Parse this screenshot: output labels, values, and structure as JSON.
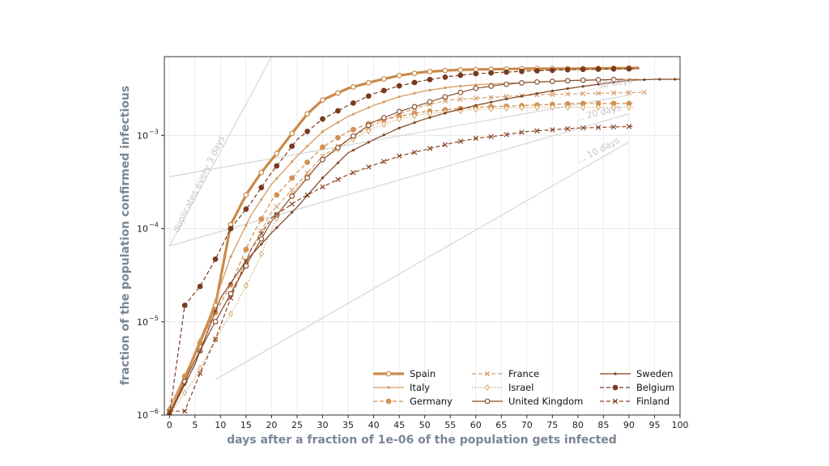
{
  "chart_data": {
    "type": "line",
    "xlabel": "days after a fraction of 1e-06 of the population gets infected",
    "ylabel": "fraction of the population confirmed infectious",
    "xlim": [
      -1,
      100
    ],
    "ylim": [
      1e-06,
      0.007
    ],
    "yscale": "log",
    "grid": true,
    "legend_position": "bottom-right",
    "xticks": [
      0,
      5,
      10,
      15,
      20,
      25,
      30,
      35,
      40,
      45,
      50,
      55,
      60,
      65,
      70,
      75,
      80,
      85,
      90,
      95,
      100
    ],
    "yticks": [
      {
        "value": 1e-06,
        "base": "10",
        "exp": "−6"
      },
      {
        "value": 1e-05,
        "base": "10",
        "exp": "−5"
      },
      {
        "value": 0.0001,
        "base": "10",
        "exp": "−4"
      },
      {
        "value": 0.001,
        "base": "10",
        "exp": "−3"
      }
    ],
    "guides": [
      {
        "label": "duplicates every 3 days",
        "from": [
          0,
          6.5e-05
        ],
        "to": [
          20,
          0.007
        ]
      },
      {
        "label": "... 10 days",
        "from": [
          9,
          2.4e-06
        ],
        "to": [
          90,
          0.00085
        ]
      },
      {
        "label": "... 20 days",
        "from": [
          0,
          6.5e-05
        ],
        "to": [
          90,
          0.0017
        ]
      },
      {
        "label": "... 30 days",
        "from": [
          0,
          0.00036
        ],
        "to": [
          90,
          0.0027
        ]
      }
    ],
    "guide_labels": {
      "d3": "duplicates every 3 days",
      "d10": "... 10 days",
      "d20": "... 20 days",
      "d30": "... 30 days"
    },
    "series": [
      {
        "name": "Spain",
        "color": "#c98a49",
        "style": "solid",
        "marker": "open-circle",
        "width": 3.2,
        "days": 92,
        "points": [
          [
            0,
            1e-06
          ],
          [
            3,
            2.5e-06
          ],
          [
            6,
            6e-06
          ],
          [
            9,
            1.5e-05
          ],
          [
            12,
            0.00011
          ],
          [
            15,
            0.00023
          ],
          [
            18,
            0.0004
          ],
          [
            21,
            0.00064
          ],
          [
            24,
            0.00105
          ],
          [
            27,
            0.0017
          ],
          [
            30,
            0.0024
          ],
          [
            35,
            0.0032
          ],
          [
            40,
            0.0038
          ],
          [
            45,
            0.0044
          ],
          [
            50,
            0.0048
          ],
          [
            55,
            0.005
          ],
          [
            60,
            0.0051
          ],
          [
            70,
            0.0052
          ],
          [
            80,
            0.0052
          ],
          [
            92,
            0.0053
          ]
        ]
      },
      {
        "name": "Italy",
        "color": "#d69a5e",
        "style": "solid",
        "marker": "dot",
        "width": 1.3,
        "days": 92,
        "points": [
          [
            0,
            1.2e-06
          ],
          [
            4,
            3.5e-06
          ],
          [
            8,
            1.2e-05
          ],
          [
            12,
            5e-05
          ],
          [
            16,
            0.00014
          ],
          [
            20,
            0.0003
          ],
          [
            25,
            0.0006
          ],
          [
            30,
            0.0011
          ],
          [
            35,
            0.0016
          ],
          [
            40,
            0.0021
          ],
          [
            45,
            0.0026
          ],
          [
            50,
            0.003
          ],
          [
            55,
            0.0033
          ],
          [
            60,
            0.0035
          ],
          [
            70,
            0.0037
          ],
          [
            80,
            0.0039
          ],
          [
            92,
            0.004
          ]
        ]
      },
      {
        "name": "Germany",
        "color": "#d39155",
        "style": "dashed",
        "marker": "filled-circle",
        "width": 1.3,
        "days": 91,
        "points": [
          [
            0,
            1.1e-06
          ],
          [
            4,
            3.5e-06
          ],
          [
            8,
            1e-05
          ],
          [
            12,
            2.5e-05
          ],
          [
            16,
            8e-05
          ],
          [
            20,
            0.0002
          ],
          [
            25,
            0.0004
          ],
          [
            30,
            0.00075
          ],
          [
            35,
            0.0011
          ],
          [
            40,
            0.0014
          ],
          [
            45,
            0.0016
          ],
          [
            50,
            0.0018
          ],
          [
            55,
            0.0019
          ],
          [
            60,
            0.002
          ],
          [
            70,
            0.0021
          ],
          [
            80,
            0.0022
          ],
          [
            91,
            0.0022
          ]
        ]
      },
      {
        "name": "France",
        "color": "#d8a070",
        "style": "dashed",
        "marker": "x",
        "width": 1.2,
        "days": 93,
        "points": [
          [
            0,
            1.1e-06
          ],
          [
            4,
            3e-06
          ],
          [
            8,
            8e-06
          ],
          [
            12,
            2e-05
          ],
          [
            16,
            6e-05
          ],
          [
            20,
            0.00015
          ],
          [
            25,
            0.0003
          ],
          [
            30,
            0.0006
          ],
          [
            35,
            0.0009
          ],
          [
            40,
            0.0013
          ],
          [
            45,
            0.0017
          ],
          [
            50,
            0.0021
          ],
          [
            55,
            0.0024
          ],
          [
            60,
            0.0025
          ],
          [
            70,
            0.0027
          ],
          [
            80,
            0.0028
          ],
          [
            93,
            0.0029
          ]
        ]
      },
      {
        "name": "Israel",
        "color": "#d8a76a",
        "style": "dotted",
        "marker": "open-diamond",
        "width": 1.2,
        "days": 91,
        "points": [
          [
            0,
            1e-06
          ],
          [
            5,
            2.5e-06
          ],
          [
            9,
            6.5e-06
          ],
          [
            13,
            1.5e-05
          ],
          [
            17,
            4e-05
          ],
          [
            21,
            0.00013
          ],
          [
            25,
            0.00028
          ],
          [
            30,
            0.00055
          ],
          [
            35,
            0.00085
          ],
          [
            40,
            0.0012
          ],
          [
            45,
            0.0015
          ],
          [
            50,
            0.0017
          ],
          [
            55,
            0.0018
          ],
          [
            60,
            0.0019
          ],
          [
            70,
            0.002
          ],
          [
            80,
            0.002
          ],
          [
            91,
            0.002
          ]
        ]
      },
      {
        "name": "United Kingdom",
        "color": "#8a5030",
        "style": "solid",
        "marker": "open-circle",
        "width": 1.2,
        "days": 89,
        "points": [
          [
            0,
            1e-06
          ],
          [
            4,
            3e-06
          ],
          [
            8,
            8e-06
          ],
          [
            12,
            2e-05
          ],
          [
            16,
            5e-05
          ],
          [
            20,
            0.00012
          ],
          [
            25,
            0.00026
          ],
          [
            30,
            0.00055
          ],
          [
            35,
            0.0009
          ],
          [
            40,
            0.0014
          ],
          [
            45,
            0.0018
          ],
          [
            50,
            0.0022
          ],
          [
            55,
            0.0027
          ],
          [
            60,
            0.0032
          ],
          [
            65,
            0.0035
          ],
          [
            70,
            0.0037
          ],
          [
            80,
            0.0039
          ],
          [
            89,
            0.004
          ]
        ]
      },
      {
        "name": "Sweden",
        "color": "#7e4422",
        "style": "solid",
        "marker": "dot",
        "width": 1.2,
        "days": 100,
        "points": [
          [
            0,
            1e-06
          ],
          [
            5,
            3.5e-06
          ],
          [
            10,
            1.8e-05
          ],
          [
            15,
            4.5e-05
          ],
          [
            20,
            9e-05
          ],
          [
            25,
            0.00017
          ],
          [
            30,
            0.00035
          ],
          [
            35,
            0.00065
          ],
          [
            40,
            0.0009
          ],
          [
            45,
            0.0012
          ],
          [
            50,
            0.0015
          ],
          [
            55,
            0.0018
          ],
          [
            60,
            0.0021
          ],
          [
            65,
            0.0024
          ],
          [
            70,
            0.0027
          ],
          [
            75,
            0.003
          ],
          [
            80,
            0.0033
          ],
          [
            85,
            0.0036
          ],
          [
            90,
            0.0039
          ],
          [
            95,
            0.004
          ],
          [
            100,
            0.004
          ]
        ]
      },
      {
        "name": "Belgium",
        "color": "#7a3a1e",
        "style": "dashed",
        "marker": "filled-circle",
        "width": 1.2,
        "days": 92,
        "points": [
          [
            0,
            1e-06
          ],
          [
            3,
            1.5e-05
          ],
          [
            6,
            2.4e-05
          ],
          [
            9,
            4.7e-05
          ],
          [
            12,
            0.0001
          ],
          [
            16,
            0.00019
          ],
          [
            20,
            0.0004
          ],
          [
            25,
            0.0009
          ],
          [
            30,
            0.0015
          ],
          [
            35,
            0.0021
          ],
          [
            40,
            0.0028
          ],
          [
            45,
            0.0034
          ],
          [
            50,
            0.0039
          ],
          [
            55,
            0.0043
          ],
          [
            60,
            0.0046
          ],
          [
            70,
            0.0049
          ],
          [
            80,
            0.0051
          ],
          [
            92,
            0.0052
          ]
        ]
      },
      {
        "name": "Finland",
        "color": "#8a4524",
        "style": "dashed",
        "marker": "x",
        "width": 1.2,
        "days": 91,
        "points": [
          [
            0,
            1.1e-06
          ],
          [
            3,
            1.1e-06
          ],
          [
            6,
            2.8e-06
          ],
          [
            9,
            6.5e-06
          ],
          [
            12,
            1.8e-05
          ],
          [
            16,
            6e-05
          ],
          [
            20,
            0.00013
          ],
          [
            25,
            0.0002
          ],
          [
            30,
            0.00028
          ],
          [
            35,
            0.00038
          ],
          [
            40,
            0.00048
          ],
          [
            45,
            0.0006
          ],
          [
            50,
            0.0007
          ],
          [
            55,
            0.00082
          ],
          [
            60,
            0.00093
          ],
          [
            65,
            0.001
          ],
          [
            70,
            0.0011
          ],
          [
            80,
            0.0012
          ],
          [
            91,
            0.00125
          ]
        ]
      }
    ]
  }
}
